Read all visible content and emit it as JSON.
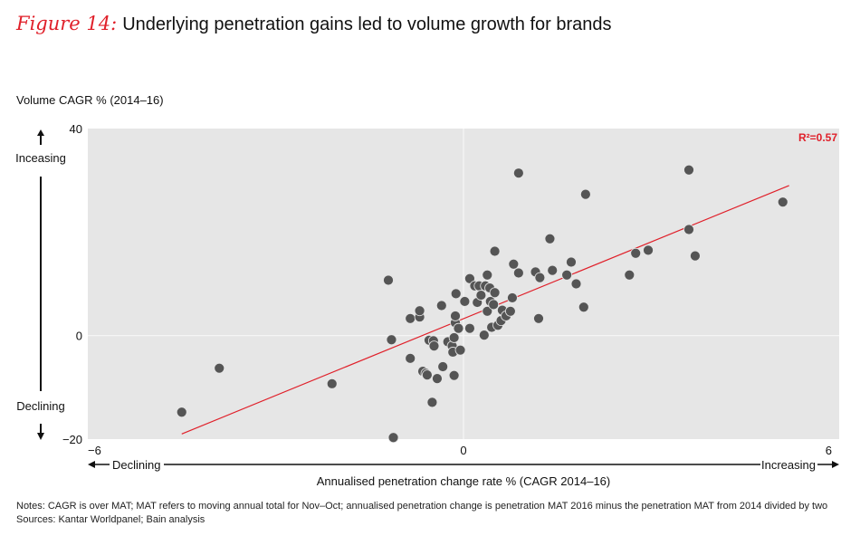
{
  "figure_label": "Figure 14:",
  "title": "Underlying penetration gains led to volume growth for brands",
  "y_axis_title": "Volume CAGR % (2014–16)",
  "notes": "Notes: CAGR is over MAT; MAT refers to moving annual total for Nov–Oct; annualised penetration change is penetration MAT 2016 minus the penetration MAT from 2014 divided by two",
  "sources": "Sources: Kantar Worldpanel; Bain analysis",
  "colors": {
    "accent": "#e0202a",
    "plot_bg": "#e6e6e6",
    "point": "#555555",
    "trend": "#e0202a"
  },
  "chart_data": {
    "type": "scatter",
    "title": "Underlying penetration gains led to volume growth for brands",
    "xlabel": "Annualised penetration change rate % (CAGR 2014–16)",
    "ylabel": "Volume CAGR % (2014–16)",
    "xlim": [
      -6,
      6
    ],
    "ylim": [
      -20,
      40
    ],
    "x_ticks": [
      "−6",
      "0",
      "6"
    ],
    "y_ticks": [
      "40",
      "0",
      "−20"
    ],
    "x_tick_values": [
      -6,
      0,
      6
    ],
    "y_tick_values": [
      40,
      0,
      -20
    ],
    "x_direction_labels": {
      "low": "Declining",
      "high": "Increasing"
    },
    "y_direction_labels": {
      "high": "Inceasing",
      "low": "Declining"
    },
    "grid": "zero-lines",
    "annotation": "R²=0.57",
    "trendline": {
      "x": [
        -4.5,
        5.2
      ],
      "y": [
        -19.0,
        29.0
      ]
    },
    "points": [
      {
        "x": -4.5,
        "y": -14.8
      },
      {
        "x": -3.9,
        "y": -6.3
      },
      {
        "x": -2.1,
        "y": -9.3
      },
      {
        "x": -1.2,
        "y": 10.7
      },
      {
        "x": -1.15,
        "y": -0.8
      },
      {
        "x": -1.12,
        "y": -19.7
      },
      {
        "x": -0.85,
        "y": -4.4
      },
      {
        "x": -0.85,
        "y": 3.3
      },
      {
        "x": -0.7,
        "y": 3.6
      },
      {
        "x": -0.7,
        "y": 4.8
      },
      {
        "x": -0.65,
        "y": -6.9
      },
      {
        "x": -0.6,
        "y": -7.3
      },
      {
        "x": -0.58,
        "y": -7.6
      },
      {
        "x": -0.55,
        "y": -0.9
      },
      {
        "x": -0.5,
        "y": -12.9
      },
      {
        "x": -0.48,
        "y": -1.0
      },
      {
        "x": -0.47,
        "y": -2.0
      },
      {
        "x": -0.42,
        "y": -8.3
      },
      {
        "x": -0.35,
        "y": 5.8
      },
      {
        "x": -0.33,
        "y": -6.0
      },
      {
        "x": -0.25,
        "y": -1.2
      },
      {
        "x": -0.18,
        "y": -2.0
      },
      {
        "x": -0.17,
        "y": -3.2
      },
      {
        "x": -0.15,
        "y": -0.4
      },
      {
        "x": -0.15,
        "y": -7.7
      },
      {
        "x": -0.13,
        "y": 2.5
      },
      {
        "x": -0.13,
        "y": 3.8
      },
      {
        "x": -0.12,
        "y": 8.1
      },
      {
        "x": -0.08,
        "y": 1.4
      },
      {
        "x": -0.05,
        "y": -2.8
      },
      {
        "x": 0.02,
        "y": 6.6
      },
      {
        "x": 0.1,
        "y": 1.4
      },
      {
        "x": 0.1,
        "y": 11.0
      },
      {
        "x": 0.18,
        "y": 9.6
      },
      {
        "x": 0.22,
        "y": 6.4
      },
      {
        "x": 0.25,
        "y": 9.6
      },
      {
        "x": 0.28,
        "y": 7.8
      },
      {
        "x": 0.35,
        "y": 9.6
      },
      {
        "x": 0.33,
        "y": 0.1
      },
      {
        "x": 0.38,
        "y": 4.7
      },
      {
        "x": 0.38,
        "y": 11.7
      },
      {
        "x": 0.42,
        "y": 9.2
      },
      {
        "x": 0.43,
        "y": 6.6
      },
      {
        "x": 0.45,
        "y": 1.6
      },
      {
        "x": 0.48,
        "y": 6.0
      },
      {
        "x": 0.5,
        "y": 8.3
      },
      {
        "x": 0.5,
        "y": 16.3
      },
      {
        "x": 0.55,
        "y": 2.0
      },
      {
        "x": 0.6,
        "y": 2.9
      },
      {
        "x": 0.62,
        "y": 4.9
      },
      {
        "x": 0.68,
        "y": 3.8
      },
      {
        "x": 0.75,
        "y": 4.7
      },
      {
        "x": 0.8,
        "y": 13.8
      },
      {
        "x": 0.78,
        "y": 7.3
      },
      {
        "x": 0.88,
        "y": 12.1
      },
      {
        "x": 0.88,
        "y": 31.4
      },
      {
        "x": 1.15,
        "y": 12.3
      },
      {
        "x": 1.2,
        "y": 3.3
      },
      {
        "x": 1.22,
        "y": 11.2
      },
      {
        "x": 1.38,
        "y": 18.7
      },
      {
        "x": 1.42,
        "y": 12.6
      },
      {
        "x": 1.65,
        "y": 11.7
      },
      {
        "x": 1.72,
        "y": 14.2
      },
      {
        "x": 1.8,
        "y": 10.0
      },
      {
        "x": 1.92,
        "y": 5.5
      },
      {
        "x": 1.95,
        "y": 27.3
      },
      {
        "x": 2.65,
        "y": 11.7
      },
      {
        "x": 2.75,
        "y": 15.9
      },
      {
        "x": 2.95,
        "y": 16.5
      },
      {
        "x": 3.6,
        "y": 20.5
      },
      {
        "x": 3.6,
        "y": 32.0
      },
      {
        "x": 3.7,
        "y": 15.4
      },
      {
        "x": 5.1,
        "y": 25.8
      }
    ]
  }
}
